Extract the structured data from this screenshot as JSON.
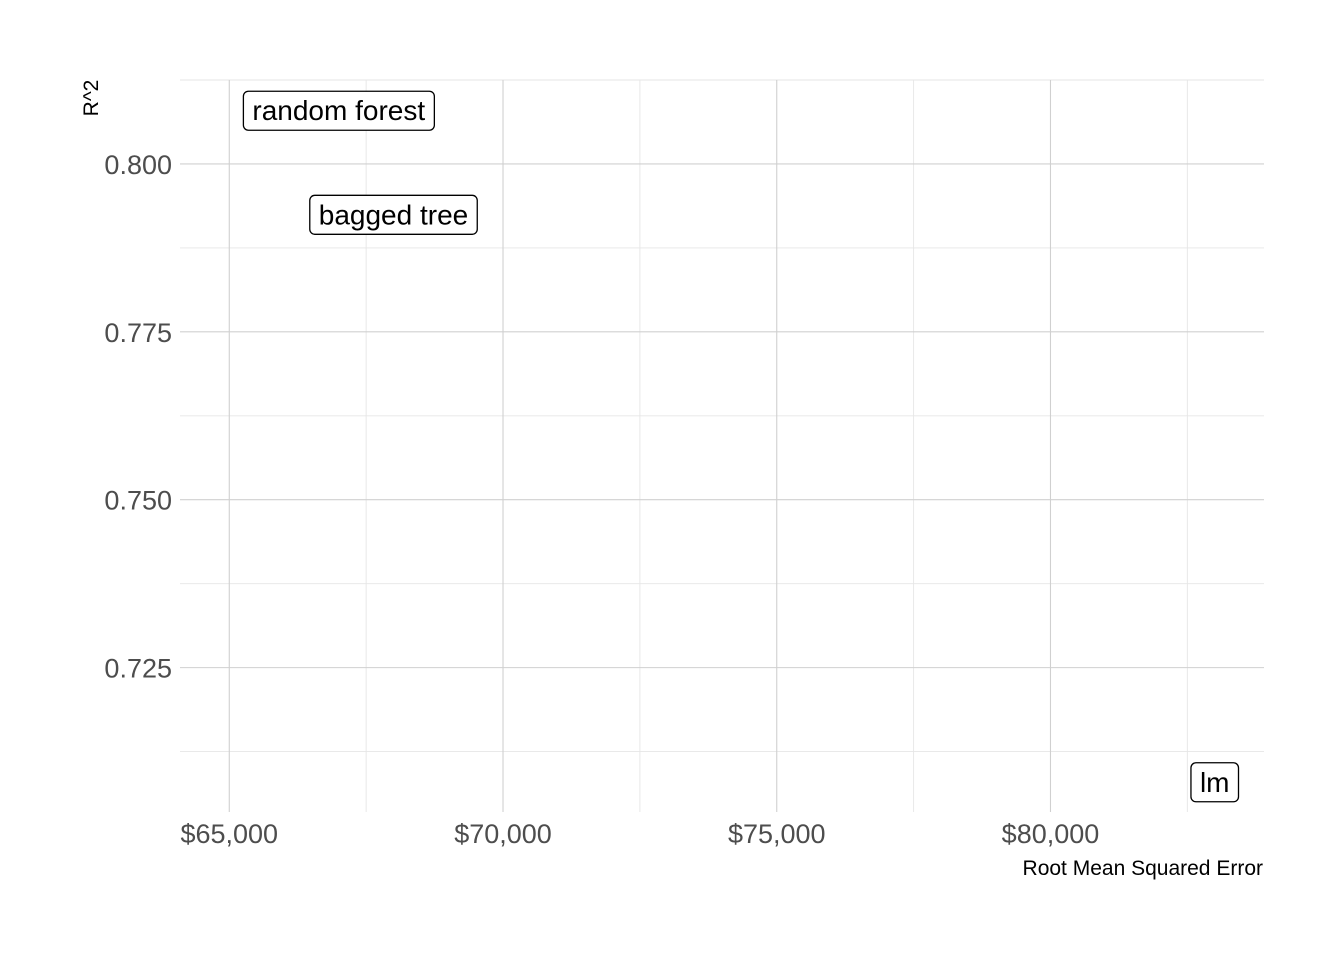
{
  "chart_data": {
    "type": "scatter",
    "title": "",
    "xlabel": "Root Mean Squared Error",
    "ylabel": "R^2",
    "xlim": [
      64100,
      83900
    ],
    "ylim": [
      0.7035,
      0.8125
    ],
    "x_major_ticks": [
      65000,
      70000,
      75000,
      80000
    ],
    "x_tick_labels": [
      "$65,000",
      "$70,000",
      "$75,000",
      "$80,000"
    ],
    "x_minor_ticks": [
      67500,
      72500,
      77500,
      82500
    ],
    "y_major_ticks": [
      0.725,
      0.75,
      0.775,
      0.8
    ],
    "y_tick_labels": [
      "0.725",
      "0.750",
      "0.775",
      "0.800"
    ],
    "y_minor_ticks": [
      0.7125,
      0.7375,
      0.7625,
      0.7875,
      0.8125
    ],
    "grid": true,
    "points": [
      {
        "label": "random forest",
        "x": 67000,
        "y": 0.808
      },
      {
        "label": "bagged tree",
        "x": 68000,
        "y": 0.7925
      },
      {
        "label": "lm",
        "x": 83000,
        "y": 0.708
      }
    ]
  }
}
